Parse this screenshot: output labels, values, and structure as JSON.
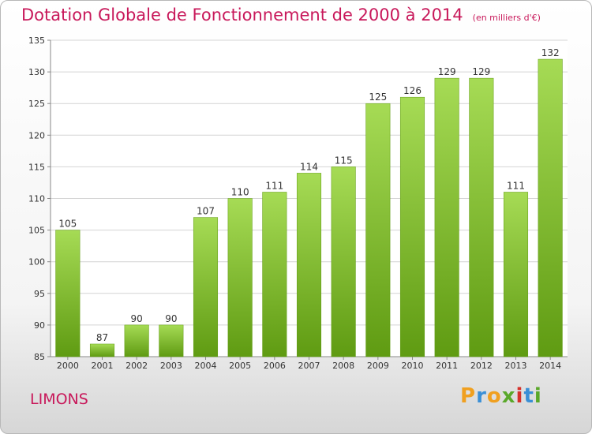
{
  "chart_data": {
    "type": "bar",
    "title": "Dotation Globale de Fonctionnement de 2000 à 2014",
    "subtitle": "(en milliers d'€)",
    "xlabel": "",
    "ylabel": "",
    "categories": [
      "2000",
      "2001",
      "2002",
      "2003",
      "2004",
      "2005",
      "2006",
      "2007",
      "2008",
      "2009",
      "2010",
      "2011",
      "2012",
      "2013",
      "2014"
    ],
    "values": [
      105,
      87,
      90,
      90,
      107,
      110,
      111,
      114,
      115,
      125,
      126,
      129,
      129,
      111,
      132
    ],
    "ylim": [
      85,
      135
    ],
    "yticks": [
      85,
      90,
      95,
      100,
      105,
      110,
      115,
      120,
      125,
      130,
      135
    ],
    "grid": true,
    "legend": "none",
    "colors": {
      "bar": "#80bd2b",
      "bar_light": "#a6db55",
      "bar_dark": "#5f9b12",
      "title": "#c8185a"
    }
  },
  "footer": {
    "town": "LIMONS",
    "logo": {
      "letters": [
        "P",
        "r",
        "o",
        "x",
        "i",
        "t",
        "i"
      ],
      "colors": [
        "#f0a020",
        "#3a8fd6",
        "#f0a020",
        "#5aa82a",
        "#d6302a",
        "#3a8fd6",
        "#5aa82a"
      ]
    }
  }
}
